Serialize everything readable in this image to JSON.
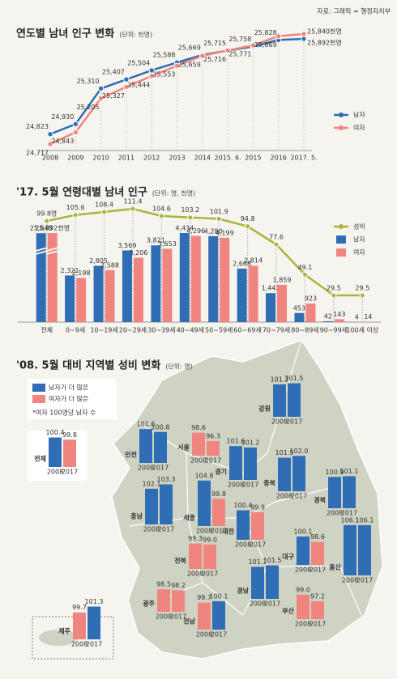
{
  "source": "자료: 그래픽 = 행정자치부",
  "chart_data": [
    {
      "type": "line",
      "title": "연도별 남녀 인구 변화",
      "unit": "(단위: 천명)",
      "categories": [
        "2008",
        "2009",
        "2010",
        "2011",
        "2012",
        "2013",
        "2014",
        "2015. 6.",
        "2015",
        "2016",
        "2017. 5."
      ],
      "series": [
        {
          "name": "남자",
          "color": "#2f6db5",
          "values": [
            24823,
            24930,
            25310,
            25407,
            25504,
            25588,
            25669,
            25715,
            25758,
            25828,
            25840
          ],
          "value_labels": [
            "24,823",
            "24,930",
            "25,310",
            "25,407",
            "25,504",
            "25,588",
            "25,669",
            "25,715",
            "25,758",
            "25,828",
            "25,840천명"
          ]
        },
        {
          "name": "여자",
          "color": "#f0847e",
          "values": [
            24717,
            24843,
            25205,
            25327,
            25444,
            25553,
            25659,
            25716,
            25771,
            25869,
            25892
          ],
          "value_labels": [
            "24,717",
            "24,843",
            "25,205",
            "25,327",
            "25,444",
            "25,553",
            "25,659",
            "25,716",
            "25,771",
            "25,869",
            "25,892천명"
          ]
        }
      ]
    },
    {
      "type": "bar-line",
      "title": "'17. 5월 연령대별 남녀 인구",
      "unit": "(단위: 명, 천명)",
      "categories": [
        "전체",
        "0~9세",
        "10~19세",
        "20~29세",
        "30~39세",
        "40~49세",
        "50~59세",
        "60~69세",
        "70~79세",
        "80~89세",
        "90~99세",
        "100세 이상"
      ],
      "series": [
        {
          "name": "성비",
          "color": "#a9b53a",
          "kind": "line",
          "values": [
            99.8,
            105.6,
            108.4,
            111.4,
            104.6,
            103.2,
            101.9,
            94.8,
            77.6,
            49.1,
            29.5,
            29.5
          ],
          "value_labels": [
            "99.8명",
            "105.6",
            "108.4",
            "111.4",
            "104.6",
            "103.2",
            "101.9",
            "94.8",
            "77.6",
            "49.1",
            "29.5",
            "29.5"
          ]
        },
        {
          "name": "남자",
          "color": "#2f6db5",
          "kind": "bar",
          "values": [
            25840,
            2321,
            2805,
            3569,
            3821,
            4434,
            4280,
            2668,
            1442,
            453,
            42,
            4
          ],
          "value_labels": [
            "25,840",
            "2,321",
            "2,805",
            "3,569",
            "3,821",
            "4,434",
            "4,280",
            "2,668",
            "1,442",
            "453",
            "42",
            "4"
          ]
        },
        {
          "name": "여자",
          "color": "#f0847e",
          "kind": "bar",
          "values": [
            25892,
            2198,
            2588,
            3206,
            3653,
            4296,
            4199,
            2814,
            1859,
            923,
            143,
            14
          ],
          "value_labels": [
            "25,892천명",
            "2,198",
            "2,588",
            "3,206",
            "3,653",
            "4,296",
            "4,199",
            "2,814",
            "1,859",
            "923",
            "143",
            "14"
          ]
        }
      ]
    },
    {
      "type": "map-bar",
      "title": "'08. 5월 대비 지역별 성비 변화",
      "unit": "(단위: 명)",
      "legend": [
        "남자가 더 많은",
        "여자가 더 많은"
      ],
      "colors": [
        "#2f6db5",
        "#f0847e"
      ],
      "note": "*여자 100명당 남자 수",
      "threshold": 100,
      "years": [
        "2008",
        "2017"
      ],
      "regions": [
        {
          "name": "전체",
          "values": [
            100.4,
            99.8
          ],
          "value_labels": [
            "100.4",
            "99.8"
          ]
        },
        {
          "name": "강원",
          "values": [
            101.2,
            101.5
          ],
          "value_labels": [
            "101.2",
            "101.5"
          ]
        },
        {
          "name": "서울",
          "values": [
            98.6,
            96.3
          ],
          "value_labels": [
            "98.6",
            "96.3"
          ]
        },
        {
          "name": "인천",
          "values": [
            101.6,
            100.8
          ],
          "value_labels": [
            "101.6",
            "100.8"
          ]
        },
        {
          "name": "경기",
          "values": [
            101.6,
            101.2
          ],
          "value_labels": [
            "101.6",
            "101.2"
          ]
        },
        {
          "name": "충북",
          "values": [
            101.5,
            102.0
          ],
          "value_labels": [
            "101.5",
            "102.0"
          ]
        },
        {
          "name": "경북",
          "values": [
            100.9,
            101.1
          ],
          "value_labels": [
            "100.9",
            "101.1"
          ]
        },
        {
          "name": "충남",
          "values": [
            102.1,
            103.3
          ],
          "value_labels": [
            "102.1",
            "103.3"
          ]
        },
        {
          "name": "세종",
          "values": [
            104.8,
            99.8
          ],
          "value_labels": [
            "104.8",
            "99.8"
          ]
        },
        {
          "name": "대전",
          "values": [
            100.4,
            99.9
          ],
          "value_labels": [
            "100.4",
            "99.9"
          ]
        },
        {
          "name": "대구",
          "values": [
            100.1,
            98.6
          ],
          "value_labels": [
            "100.1",
            "98.6"
          ]
        },
        {
          "name": "울산",
          "values": [
            106.1,
            106.1
          ],
          "value_labels": [
            "106.1",
            "106.1"
          ]
        },
        {
          "name": "전북",
          "values": [
            99.3,
            99.0
          ],
          "value_labels": [
            "99.3",
            "99.0"
          ]
        },
        {
          "name": "경남",
          "values": [
            101.1,
            101.5
          ],
          "value_labels": [
            "101.1",
            "101.5"
          ]
        },
        {
          "name": "광주",
          "values": [
            98.5,
            98.2
          ],
          "value_labels": [
            "98.5",
            "98.2"
          ]
        },
        {
          "name": "전남",
          "values": [
            99.7,
            100.1
          ],
          "value_labels": [
            "99.7",
            "100.1"
          ]
        },
        {
          "name": "부산",
          "values": [
            99.0,
            97.2
          ],
          "value_labels": [
            "99.0",
            "97.2"
          ]
        },
        {
          "name": "제주",
          "values": [
            99.7,
            101.3
          ],
          "value_labels": [
            "99.7",
            "101.3"
          ]
        }
      ]
    }
  ]
}
